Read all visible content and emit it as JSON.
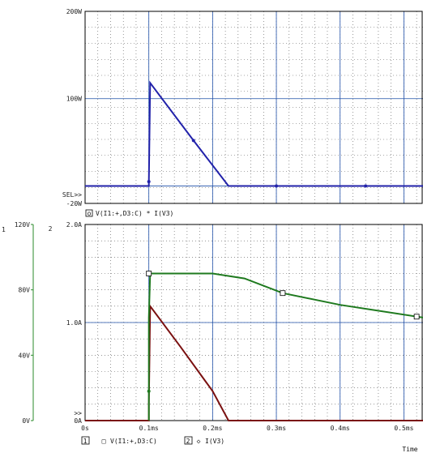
{
  "colors": {
    "background": "#ffffff",
    "axis_frame": "#000000",
    "grid_major": "#1f4fa8",
    "grid_minor": "#555555",
    "series_blue": "#2222aa",
    "series_green": "#1f7a1f",
    "series_darkred": "#7a1010",
    "series_white_marker": "#ffffff",
    "axis_green": "#2a8a2a"
  },
  "chart_data": [
    {
      "type": "line",
      "id": "top_plot",
      "y_tick_labels": [
        "200W",
        "100W",
        "-20W"
      ],
      "y_ticks": [
        200,
        100,
        -20
      ],
      "ylim": [
        -20,
        200
      ],
      "xlim": [
        0,
        0.53
      ],
      "sel_marker": "SEL>>",
      "legend": [
        {
          "icon": "o",
          "label": "V(I1:+,D3:C) * I(V3)"
        }
      ],
      "series": [
        {
          "label": "V(I1:+,D3:C) * I(V3)",
          "x": [
            0.0,
            0.1,
            0.1,
            0.102,
            0.17,
            0.225,
            0.3,
            0.4,
            0.53
          ],
          "y": [
            0,
            0,
            5,
            118,
            52,
            0,
            0,
            0,
            0
          ]
        }
      ]
    },
    {
      "type": "line",
      "id": "bottom_plot",
      "axis_number_label": "2",
      "x_tick_labels": [
        "0s",
        "0.1ms",
        "0.2ms",
        "0.3ms",
        "0.4ms",
        "0.5ms"
      ],
      "x_ticks": [
        0,
        0.1,
        0.2,
        0.3,
        0.4,
        0.5
      ],
      "xlabel": "Time",
      "xlim": [
        0,
        0.53
      ],
      "y1_axis_number_label": "1",
      "y1_tick_labels": [
        "120V",
        "80V",
        "40V",
        "0V"
      ],
      "y1_ticks": [
        120,
        80,
        40,
        0
      ],
      "y1lim": [
        0,
        120
      ],
      "y2_tick_labels": [
        "2.0A",
        "1.0A",
        "0A"
      ],
      "y2_ticks": [
        2.0,
        1.0,
        0
      ],
      "y2lim": [
        0,
        2.0
      ],
      "sel_marker": ">>",
      "legend": [
        {
          "number": "1",
          "icon": "□",
          "label": "V(I1:+,D3:C)"
        },
        {
          "number": "2",
          "icon": "◇",
          "label": "I(V3)"
        }
      ],
      "series": [
        {
          "label": "V(I1:+,D3:C)",
          "axis": "y1",
          "x": [
            0.0,
            0.1,
            0.1,
            0.102,
            0.15,
            0.2,
            0.225,
            0.53
          ],
          "y": [
            0,
            0,
            10,
            70,
            45,
            18,
            0,
            0
          ]
        },
        {
          "label": "I(V3)",
          "axis": "y2",
          "x": [
            0.1,
            0.1,
            0.102,
            0.2,
            0.25,
            0.31,
            0.4,
            0.53
          ],
          "y": [
            0,
            1.05,
            1.5,
            1.5,
            1.45,
            1.3,
            1.18,
            1.05
          ]
        }
      ]
    }
  ]
}
